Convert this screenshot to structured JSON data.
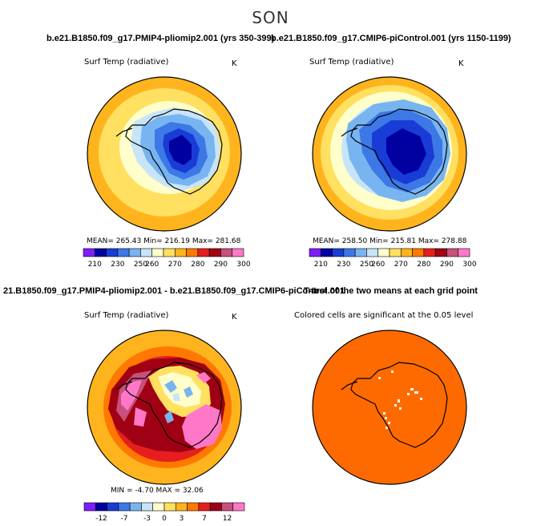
{
  "figure": {
    "title": "SON",
    "subtitle_left": "b.e21.B1850.f09_g17.PMIP4-pliomip2.001 (yrs 350-399)",
    "subtitle_right": "b.e21.B1850.f09_g17.CMIP6-piControl.001 (yrs 1150-1199)",
    "diff_title": "21.B1850.f09_g17.PMIP4-pliomip2.001 - b.e21.B1850.f09_g17.CMIP6-piControl.001",
    "ttest_title": "T-test of the two means at each grid point"
  },
  "panels": {
    "p1": {
      "label": "Surf Temp (radiative)",
      "units": "K",
      "stats": "MEAN= 265.43  Min= 216.19  Max= 281.68"
    },
    "p2": {
      "label": "Surf Temp (radiative)",
      "units": "K",
      "stats": "MEAN= 258.50  Min= 215.81  Max= 278.88"
    },
    "p3": {
      "label": "Surf Temp (radiative)",
      "units": "K",
      "stats": "MIN =  -4.70 MAX =  32.06"
    },
    "p4": {
      "label": "Colored cells are significant at the 0.05 level"
    }
  },
  "colors": {
    "abs_scale": [
      "#7f1dff",
      "#0000a0",
      "#1a3cd6",
      "#3c78e6",
      "#78b4f0",
      "#c8e4f8",
      "#ffffcc",
      "#ffe060",
      "#ffb41e",
      "#ff7800",
      "#e61e1e",
      "#a00014",
      "#c8507a",
      "#ff78c8"
    ],
    "diff_scale": [
      "#7f1dff",
      "#0000a0",
      "#1a3cd6",
      "#3c78e6",
      "#78b4f0",
      "#c8e4f8",
      "#ffffcc",
      "#ffe060",
      "#ffb41e",
      "#ff7800",
      "#e61e1e",
      "#a00014",
      "#c8507a",
      "#ff78c8"
    ],
    "ttest_fill": "#ff6a00"
  },
  "chart_data": [
    {
      "type": "heatmap",
      "title": "b.e21.B1850.f09_g17.PMIP4-pliomip2.001 (yrs 350-399)",
      "variable": "Surf Temp (radiative)",
      "units": "K",
      "projection": "south-polar stereographic",
      "mean": 265.43,
      "min": 216.19,
      "max": 281.68,
      "colorbar_levels": [
        210,
        220,
        230,
        240,
        250,
        260,
        265,
        270,
        275,
        280,
        285,
        290,
        295,
        300
      ],
      "colorbar_labels": [
        "210",
        "230",
        "250",
        "260",
        "270",
        "280",
        "290",
        "300"
      ]
    },
    {
      "type": "heatmap",
      "title": "b.e21.B1850.f09_g17.CMIP6-piControl.001 (yrs 1150-1199)",
      "variable": "Surf Temp (radiative)",
      "units": "K",
      "projection": "south-polar stereographic",
      "mean": 258.5,
      "min": 215.81,
      "max": 278.88,
      "colorbar_levels": [
        210,
        220,
        230,
        240,
        250,
        260,
        265,
        270,
        275,
        280,
        285,
        290,
        295,
        300
      ],
      "colorbar_labels": [
        "210",
        "230",
        "250",
        "260",
        "270",
        "280",
        "290",
        "300"
      ]
    },
    {
      "type": "heatmap",
      "title": "21.B1850.f09_g17.PMIP4-pliomip2.001 - b.e21.B1850.f09_g17.CMIP6-piControl.001",
      "variable": "Surf Temp (radiative)",
      "units": "K",
      "projection": "south-polar stereographic",
      "min": -4.7,
      "max": 32.06,
      "colorbar_levels": [
        -15,
        -12,
        -9,
        -7,
        -5,
        -3,
        -1,
        0,
        1,
        3,
        5,
        7,
        9,
        12
      ],
      "colorbar_labels": [
        "-12",
        "-7",
        "-3",
        "0",
        "3",
        "7",
        "12"
      ]
    },
    {
      "type": "heatmap",
      "title": "T-test of the two means at each grid point",
      "note": "Colored cells are significant at the 0.05 level",
      "projection": "south-polar stereographic"
    }
  ]
}
